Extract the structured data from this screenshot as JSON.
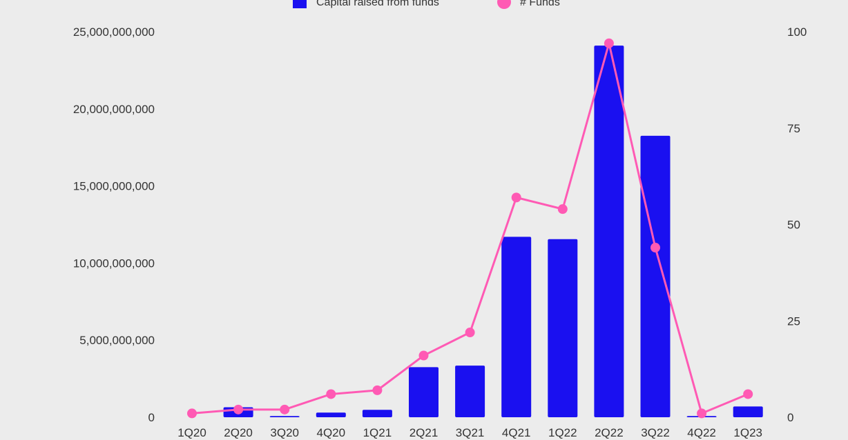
{
  "chart_data": {
    "type": "bar",
    "categories": [
      "1Q20",
      "2Q20",
      "3Q20",
      "4Q20",
      "1Q21",
      "2Q21",
      "3Q21",
      "4Q21",
      "1Q22",
      "2Q22",
      "3Q22",
      "4Q22",
      "1Q23"
    ],
    "series": [
      {
        "name": "Capital raised from funds",
        "type": "bar",
        "axis": "left",
        "color": "#1a10f0",
        "values": [
          0,
          650000000,
          80000000,
          300000000,
          480000000,
          3250000000,
          3350000000,
          11700000000,
          11550000000,
          24100000000,
          18250000000,
          80000000,
          700000000
        ]
      },
      {
        "name": "# Funds",
        "type": "line",
        "axis": "right",
        "color": "#ff5ab4",
        "values": [
          1,
          2,
          2,
          6,
          7,
          16,
          22,
          57,
          54,
          97,
          44,
          1,
          6
        ]
      }
    ],
    "y_left": {
      "ylim": [
        0,
        25000000000
      ],
      "ticks": [
        0,
        5000000000,
        10000000000,
        15000000000,
        20000000000,
        25000000000
      ],
      "tick_labels": [
        "0",
        "5,000,000,000",
        "10,000,000,000",
        "15,000,000,000",
        "20,000,000,000",
        "25,000,000,000"
      ]
    },
    "y_right": {
      "ylim": [
        0,
        100
      ],
      "ticks": [
        0,
        25,
        50,
        75,
        100
      ],
      "tick_labels": [
        "0",
        "25",
        "50",
        "75",
        "100"
      ]
    },
    "legend": {
      "position": "top-center",
      "entries": [
        "Capital raised from funds",
        "# Funds"
      ]
    },
    "grid": false,
    "title": "",
    "xlabel": "",
    "ylabel": ""
  }
}
